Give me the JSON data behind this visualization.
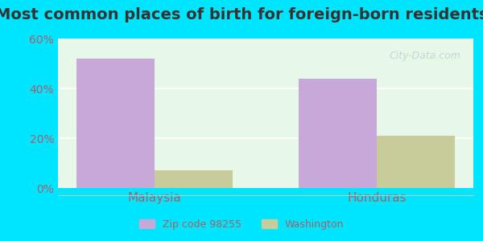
{
  "title": "Most common places of birth for foreign-born residents",
  "categories": [
    "Malaysia",
    "Honduras"
  ],
  "zip_values": [
    52,
    44
  ],
  "wa_values": [
    7,
    21
  ],
  "zip_color": "#c8a8d8",
  "wa_color": "#c8cc9a",
  "ylim": [
    0,
    60
  ],
  "yticks": [
    0,
    20,
    40,
    60
  ],
  "ytick_labels": [
    "0%",
    "20%",
    "40%",
    "60%"
  ],
  "legend_zip": "Zip code 98255",
  "legend_wa": "Washington",
  "bar_width": 0.35,
  "background_top": "#e8f5e9",
  "background_bottom": "#f0ffe0",
  "outer_bg": "#00e5ff",
  "title_fontsize": 14,
  "axis_label_color": "#a06070",
  "watermark_text": "City-Data.com"
}
